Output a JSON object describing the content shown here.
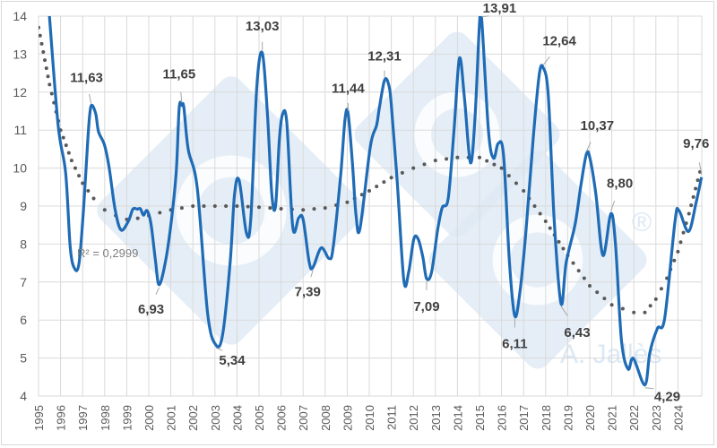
{
  "chart_data": {
    "type": "line",
    "title": "",
    "xlabel": "",
    "ylabel": "",
    "xlim": [
      1995,
      2025.1
    ],
    "ylim": [
      4,
      14
    ],
    "yticks": [
      "4",
      "5",
      "6",
      "7",
      "8",
      "9",
      "10",
      "11",
      "12",
      "13",
      "14"
    ],
    "xticks": [
      "1995",
      "1996",
      "1997",
      "1998",
      "1999",
      "2000",
      "2001",
      "2002",
      "2003",
      "2004",
      "2005",
      "2006",
      "2007",
      "2008",
      "2009",
      "2010",
      "2011",
      "2012",
      "2013",
      "2014",
      "2015",
      "2016",
      "2017",
      "2018",
      "2019",
      "2020",
      "2021",
      "2022",
      "2023",
      "2024"
    ],
    "grid": true,
    "legend": "none",
    "series": [
      {
        "color": "#1f6bb5",
        "points": [
          [
            1995.49,
            14.03
          ],
          [
            1995.89,
            11.12
          ],
          [
            1996.23,
            9.87
          ],
          [
            1996.44,
            7.9
          ],
          [
            1996.64,
            7.35
          ],
          [
            1996.84,
            7.51
          ],
          [
            1997.05,
            9.0
          ],
          [
            1997.25,
            10.89
          ],
          [
            1997.38,
            11.63
          ],
          [
            1997.59,
            11.44
          ],
          [
            1997.72,
            10.96
          ],
          [
            1997.99,
            10.61
          ],
          [
            1998.2,
            10.02
          ],
          [
            1998.47,
            8.92
          ],
          [
            1998.74,
            8.37
          ],
          [
            1999.08,
            8.61
          ],
          [
            1999.28,
            8.92
          ],
          [
            1999.48,
            8.92
          ],
          [
            1999.62,
            8.93
          ],
          [
            1999.76,
            8.76
          ],
          [
            1999.92,
            8.88
          ],
          [
            2000.1,
            8.53
          ],
          [
            2000.3,
            7.58
          ],
          [
            2000.47,
            6.93
          ],
          [
            2000.77,
            7.58
          ],
          [
            2001.04,
            8.69
          ],
          [
            2001.25,
            9.94
          ],
          [
            2001.38,
            11.59
          ],
          [
            2001.5,
            11.65
          ],
          [
            2001.59,
            11.6
          ],
          [
            2001.79,
            10.49
          ],
          [
            2002.2,
            9.47
          ],
          [
            2002.67,
            6.17
          ],
          [
            2003.05,
            5.34
          ],
          [
            2003.35,
            5.62
          ],
          [
            2003.69,
            7.51
          ],
          [
            2003.89,
            9.31
          ],
          [
            2004.1,
            9.67
          ],
          [
            2004.43,
            8.29
          ],
          [
            2004.63,
            8.69
          ],
          [
            2004.9,
            12.14
          ],
          [
            2005.15,
            13.03
          ],
          [
            2005.38,
            11.44
          ],
          [
            2005.58,
            9.31
          ],
          [
            2005.75,
            9.0
          ],
          [
            2005.92,
            10.73
          ],
          [
            2006.06,
            11.4
          ],
          [
            2006.26,
            11.2
          ],
          [
            2006.53,
            8.45
          ],
          [
            2006.8,
            8.69
          ],
          [
            2007.0,
            8.65
          ],
          [
            2007.28,
            7.51
          ],
          [
            2007.45,
            7.39
          ],
          [
            2007.82,
            7.9
          ],
          [
            2008.18,
            7.62
          ],
          [
            2008.36,
            7.9
          ],
          [
            2008.7,
            9.79
          ],
          [
            2008.9,
            11.28
          ],
          [
            2009.04,
            11.44
          ],
          [
            2009.24,
            10.1
          ],
          [
            2009.4,
            8.76
          ],
          [
            2009.58,
            8.41
          ],
          [
            2010.05,
            10.57
          ],
          [
            2010.33,
            11.12
          ],
          [
            2010.46,
            11.59
          ],
          [
            2010.69,
            12.31
          ],
          [
            2010.87,
            12.22
          ],
          [
            2011.0,
            11.67
          ],
          [
            2011.27,
            9.63
          ],
          [
            2011.57,
            7.04
          ],
          [
            2011.79,
            7.27
          ],
          [
            2012.02,
            8.13
          ],
          [
            2012.22,
            8.13
          ],
          [
            2012.43,
            7.66
          ],
          [
            2012.6,
            7.09
          ],
          [
            2012.83,
            7.27
          ],
          [
            2013.1,
            8.37
          ],
          [
            2013.31,
            8.96
          ],
          [
            2013.58,
            9.2
          ],
          [
            2013.85,
            11.04
          ],
          [
            2014.09,
            12.89
          ],
          [
            2014.32,
            11.83
          ],
          [
            2014.59,
            10.14
          ],
          [
            2014.8,
            11.36
          ],
          [
            2015.0,
            13.8
          ],
          [
            2015.1,
            13.91
          ],
          [
            2015.41,
            10.96
          ],
          [
            2015.64,
            10.26
          ],
          [
            2015.85,
            10.65
          ],
          [
            2016.09,
            10.34
          ],
          [
            2016.36,
            7.51
          ],
          [
            2016.6,
            6.11
          ],
          [
            2016.83,
            6.72
          ],
          [
            2017.1,
            8.29
          ],
          [
            2017.44,
            10.81
          ],
          [
            2017.71,
            12.46
          ],
          [
            2017.89,
            12.64
          ],
          [
            2018.12,
            11.91
          ],
          [
            2018.39,
            8.61
          ],
          [
            2018.7,
            6.43
          ],
          [
            2018.93,
            7.51
          ],
          [
            2019.34,
            8.53
          ],
          [
            2019.6,
            9.55
          ],
          [
            2019.85,
            10.37
          ],
          [
            2020.01,
            10.26
          ],
          [
            2020.28,
            9.31
          ],
          [
            2020.6,
            7.7
          ],
          [
            2020.96,
            8.8
          ],
          [
            2021.17,
            7.98
          ],
          [
            2021.44,
            5.46
          ],
          [
            2021.74,
            4.71
          ],
          [
            2021.98,
            4.99
          ],
          [
            2022.5,
            4.29
          ],
          [
            2022.73,
            5.15
          ],
          [
            2023.07,
            5.78
          ],
          [
            2023.4,
            6.05
          ],
          [
            2023.87,
            8.61
          ],
          [
            2024.05,
            8.88
          ],
          [
            2024.48,
            8.33
          ],
          [
            2024.82,
            9.08
          ],
          [
            2025.07,
            9.76
          ]
        ]
      },
      {
        "kind": "polynomial-trendline",
        "style": "dotted",
        "color": "#595959",
        "points": [
          [
            1995.0,
            13.7
          ],
          [
            1995.5,
            12.2
          ],
          [
            1996.0,
            11.0
          ],
          [
            1996.5,
            10.2
          ],
          [
            1997.0,
            9.6
          ],
          [
            1997.5,
            9.2
          ],
          [
            1998.0,
            8.9
          ],
          [
            1998.5,
            8.75
          ],
          [
            1999.0,
            8.65
          ],
          [
            1999.5,
            8.68
          ],
          [
            2000.0,
            8.75
          ],
          [
            2001.0,
            8.9
          ],
          [
            2002.0,
            9.0
          ],
          [
            2003.0,
            9.0
          ],
          [
            2004.0,
            9.0
          ],
          [
            2005.0,
            8.97
          ],
          [
            2006.0,
            8.93
          ],
          [
            2007.0,
            8.9
          ],
          [
            2008.0,
            8.95
          ],
          [
            2009.0,
            9.1
          ],
          [
            2010.0,
            9.4
          ],
          [
            2011.0,
            9.75
          ],
          [
            2012.0,
            10.0
          ],
          [
            2013.0,
            10.2
          ],
          [
            2014.0,
            10.28
          ],
          [
            2015.0,
            10.28
          ],
          [
            2016.0,
            10.0
          ],
          [
            2017.0,
            9.4
          ],
          [
            2018.0,
            8.6
          ],
          [
            2019.0,
            7.7
          ],
          [
            2020.0,
            6.9
          ],
          [
            2021.0,
            6.4
          ],
          [
            2022.0,
            6.2
          ],
          [
            2022.5,
            6.2
          ],
          [
            2023.0,
            6.55
          ],
          [
            2023.5,
            7.1
          ],
          [
            2024.0,
            7.8
          ],
          [
            2024.5,
            8.8
          ],
          [
            2025.0,
            9.9
          ]
        ]
      }
    ],
    "annotations": [
      {
        "year": 1997.38,
        "value": 11.63,
        "text": "11,63"
      },
      {
        "year": 2000.47,
        "value": 6.93,
        "text": "6,93"
      },
      {
        "year": 2001.5,
        "value": 11.65,
        "text": "11,65"
      },
      {
        "year": 2003.05,
        "value": 5.34,
        "text": "5,34"
      },
      {
        "year": 2005.15,
        "value": 13.03,
        "text": "13,03"
      },
      {
        "year": 2007.45,
        "value": 7.39,
        "text": "7,39"
      },
      {
        "year": 2009.04,
        "value": 11.44,
        "text": "11,44"
      },
      {
        "year": 2010.69,
        "value": 12.31,
        "text": "12,31"
      },
      {
        "year": 2012.6,
        "value": 7.09,
        "text": "7,09"
      },
      {
        "year": 2015.1,
        "value": 13.91,
        "text": "13,91"
      },
      {
        "year": 2016.6,
        "value": 6.11,
        "text": "6,11"
      },
      {
        "year": 2017.89,
        "value": 12.64,
        "text": "12,64"
      },
      {
        "year": 2018.7,
        "value": 6.43,
        "text": "6,43"
      },
      {
        "year": 2019.85,
        "value": 10.37,
        "text": "10,37"
      },
      {
        "year": 2020.96,
        "value": 8.8,
        "text": "8,80"
      },
      {
        "year": 2022.5,
        "value": 4.29,
        "text": "4,29"
      },
      {
        "year": 2025.07,
        "value": 9.76,
        "text": "9,76"
      }
    ],
    "trendline_label": "R² = 0,2999"
  },
  "watermark": {
    "text": "A. Jallès",
    "mark": "®",
    "color": "#dce8f4"
  }
}
